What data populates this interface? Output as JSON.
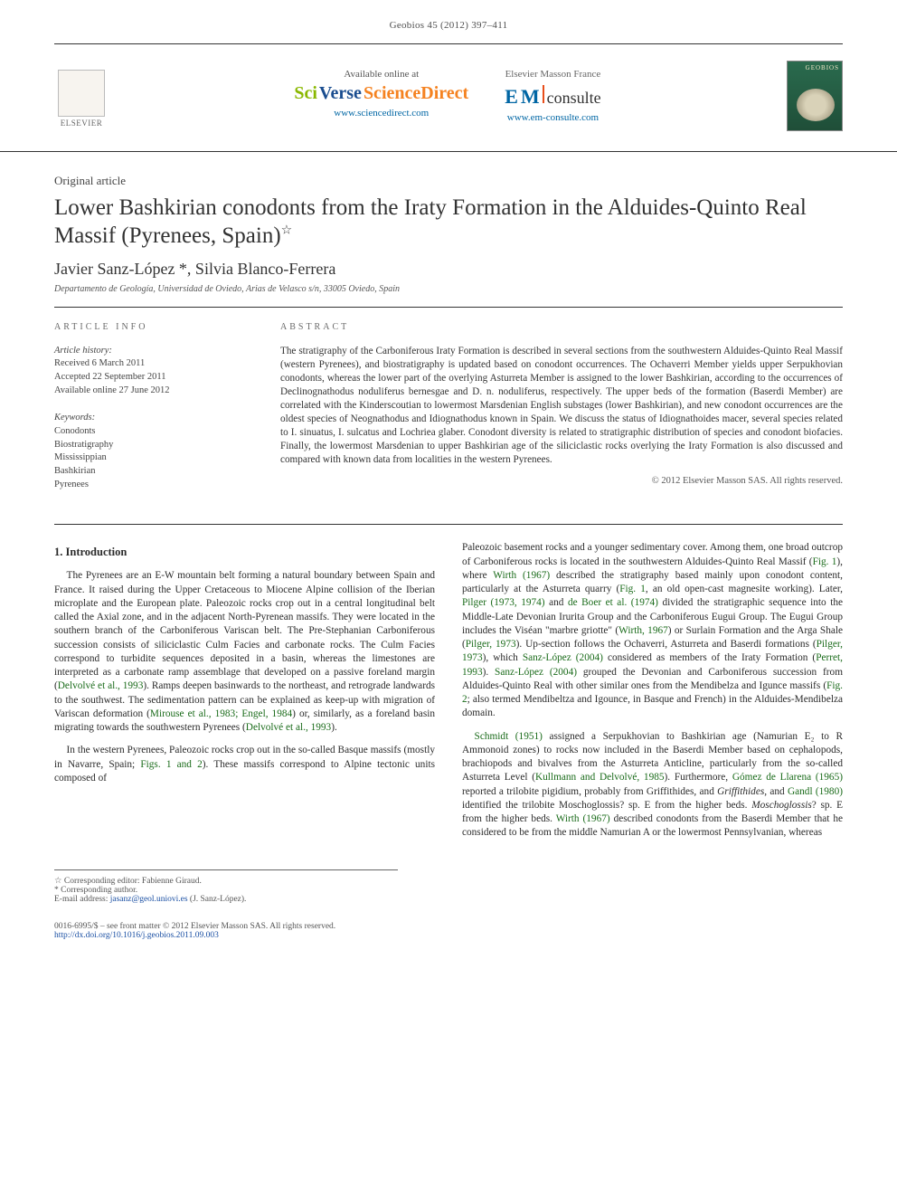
{
  "header": {
    "journal_ref": "Geobios 45 (2012) 397–411"
  },
  "banner": {
    "elsevier": "ELSEVIER",
    "left": {
      "label": "Available online at",
      "brand_sci": "Sci",
      "brand_verse": "Verse",
      "brand_direct": " ScienceDirect",
      "url": "www.sciencedirect.com"
    },
    "right": {
      "pub_label": "Elsevier Masson France",
      "brand_e": "E",
      "brand_m": "M",
      "brand_text": "consulte",
      "url": "www.em-consulte.com"
    },
    "cover": "GEOBIOS"
  },
  "article": {
    "type": "Original article",
    "title": "Lower Bashkirian conodonts from the Iraty Formation in the Alduides-Quinto Real Massif (Pyrenees, Spain)",
    "star": "☆",
    "authors": "Javier Sanz-López *, Silvia Blanco-Ferrera",
    "affiliation": "Departamento de Geología, Universidad de Oviedo, Arias de Velasco s/n, 33005 Oviedo, Spain"
  },
  "info": {
    "heading": "ARTICLE INFO",
    "history_label": "Article history:",
    "received": "Received 6 March 2011",
    "accepted": "Accepted 22 September 2011",
    "online": "Available online 27 June 2012",
    "keywords_label": "Keywords:",
    "keywords": [
      "Conodonts",
      "Biostratigraphy",
      "Mississippian",
      "Bashkirian",
      "Pyrenees"
    ]
  },
  "abstract": {
    "heading": "ABSTRACT",
    "text": "The stratigraphy of the Carboniferous Iraty Formation is described in several sections from the southwestern Alduides-Quinto Real Massif (western Pyrenees), and biostratigraphy is updated based on conodont occurrences. The Ochaverri Member yields upper Serpukhovian conodonts, whereas the lower part of the overlying Asturreta Member is assigned to the lower Bashkirian, according to the occurrences of Declinognathodus noduliferus bernesgae and D. n. noduliferus, respectively. The upper beds of the formation (Baserdi Member) are correlated with the Kinderscoutian to lowermost Marsdenian English substages (lower Bashkirian), and new conodont occurrences are the oldest species of Neognathodus and Idiognathodus known in Spain. We discuss the status of Idiognathoides macer, several species related to I. sinuatus, I. sulcatus and Lochriea glaber. Conodont diversity is related to stratigraphic distribution of species and conodont biofacies. Finally, the lowermost Marsdenian to upper Bashkirian age of the siliciclastic rocks overlying the Iraty Formation is also discussed and compared with known data from localities in the western Pyrenees.",
    "copyright": "© 2012 Elsevier Masson SAS. All rights reserved."
  },
  "body": {
    "intro_heading": "1. Introduction",
    "p1a": "The Pyrenees are an E-W mountain belt forming a natural boundary between Spain and France. It raised during the Upper Cretaceous to Miocene Alpine collision of the Iberian microplate and the European plate. Paleozoic rocks crop out in a central longitudinal belt called the Axial zone, and in the adjacent North-Pyrenean massifs. They were located in the southern branch of the Carboniferous Variscan belt. The Pre-Stephanian Carboniferous succession consists of siliciclastic Culm Facies and carbonate rocks. The Culm Facies correspond to turbidite sequences deposited in a basin, whereas the limestones are interpreted as a carbonate ramp assemblage that developed on a passive foreland margin (",
    "c1": "Delvolvé et al., 1993",
    "p1b": "). Ramps deepen basinwards to the northeast, and retrograde landwards to the southwest. The sedimentation pattern can be explained as keep-up with migration of Variscan deformation (",
    "c2": "Mirouse et al., 1983; Engel, 1984",
    "p1c": ") or, similarly, as a foreland basin migrating towards the southwestern Pyrenees (",
    "c3": "Delvolvé et al., 1993",
    "p1d": ").",
    "p2a": "In the western Pyrenees, Paleozoic rocks crop out in the so-called Basque massifs (mostly in Navarre, Spain; ",
    "f1": "Figs. 1 and 2",
    "p2b": "). These massifs correspond to Alpine tectonic units composed of",
    "p3a": "Paleozoic basement rocks and a younger sedimentary cover. Among them, one broad outcrop of Carboniferous rocks is located in the southwestern Alduides-Quinto Real Massif (",
    "f2": "Fig. 1",
    "p3b": "), where ",
    "c4": "Wirth (1967)",
    "p3c": " described the stratigraphy based mainly upon conodont content, particularly at the Asturreta quarry (",
    "f3": "Fig. 1",
    "p3d": ", an old open-cast magnesite working). Later, ",
    "c5": "Pilger (1973, 1974)",
    "p3e": " and ",
    "c6": "de Boer et al. (1974)",
    "p3f": " divided the stratigraphic sequence into the Middle-Late Devonian Irurita Group and the Carboniferous Eugui Group. The Eugui Group includes the Viséan \"marbre griotte\" (",
    "c7": "Wirth, 1967",
    "p3g": ") or Surlain Formation and the Arga Shale (",
    "c8": "Pilger, 1973",
    "p3h": "). Up-section follows the Ochaverri, Asturreta and Baserdi formations (",
    "c9": "Pilger, 1973",
    "p3i": "), which ",
    "c10": "Sanz-López (2004)",
    "p3j": " considered as members of the Iraty Formation (",
    "c11": "Perret, 1993",
    "p3k": "). ",
    "c12": "Sanz-López (2004)",
    "p3l": " grouped the Devonian and Carboniferous succession from Alduides-Quinto Real with other similar ones from the Mendibelza and Igunce massifs (",
    "f4": "Fig. 2",
    "p3m": "; also termed Mendibeltza and Igounce, in Basque and French) in the Alduides-Mendibelza domain.",
    "p4a": "",
    "c13": "Schmidt (1951)",
    "p4b": " assigned a Serpukhovian to Bashkirian age (Namurian E₂ to R Ammonoid zones) to rocks now included in the Baserdi Member based on cephalopods, brachiopods and bivalves from the Asturreta Anticline, particularly from the so-called Asturreta Level (",
    "c14": "Kullmann and Delvolvé, 1985",
    "p4c": "). Furthermore, ",
    "c15": "Gómez de Llarena (1965)",
    "p4d": " reported a trilobite pigidium, probably from Griffithides, and ",
    "c16": "Gandl (1980)",
    "p4e": " identified the trilobite Moschoglossis? sp. E from the higher beds. ",
    "c17": "Wirth (1967)",
    "p4f": " described conodonts from the Baserdi Member that he considered to be from the middle Namurian A or the lowermost Pennsylvanian, whereas"
  },
  "footnotes": {
    "editor": "☆ Corresponding editor: Fabienne Giraud.",
    "corr": "* Corresponding author.",
    "email_label": "E-mail address: ",
    "email": "jasanz@geol.uniovi.es",
    "email_suffix": " (J. Sanz-López)."
  },
  "footer": {
    "left": "0016-6995/$ – see front matter © 2012 Elsevier Masson SAS. All rights reserved.",
    "doi": "http://dx.doi.org/10.1016/j.geobios.2011.09.003"
  },
  "colors": {
    "text": "#333333",
    "cite": "#1a6b1a",
    "link": "#1a4fa3",
    "sd_green": "#8ab800",
    "sd_orange": "#f58220",
    "em_blue": "#0066a4",
    "cover_bg": "#2a6b4e"
  }
}
